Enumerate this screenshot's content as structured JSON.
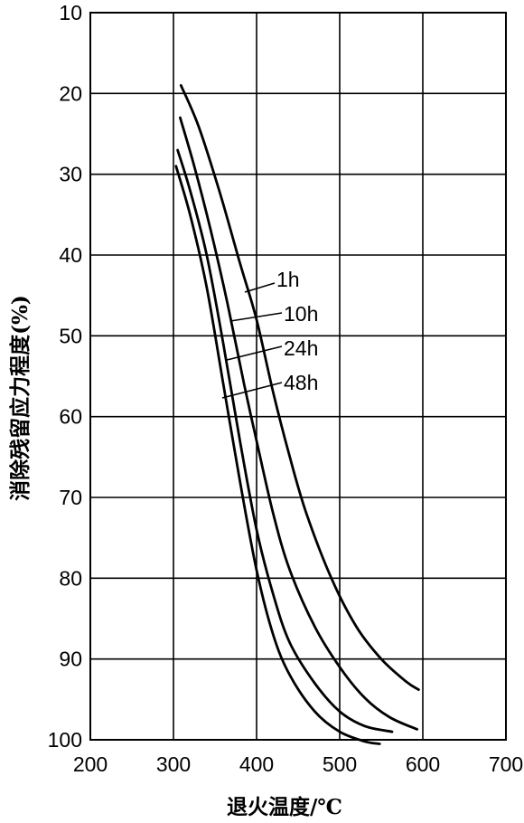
{
  "chart_data": {
    "type": "line",
    "title": "",
    "xlabel": "退火温度/℃",
    "ylabel": "消除残留应力程度(%)",
    "xlim": [
      200,
      700
    ],
    "ylim": [
      10,
      100
    ],
    "y_inverted": true,
    "grid": true,
    "x_ticks": [
      "200",
      "300",
      "400",
      "500",
      "600",
      "700"
    ],
    "y_ticks": [
      "10",
      "20",
      "30",
      "40",
      "50",
      "60",
      "70",
      "80",
      "90",
      "100"
    ],
    "series": [
      {
        "name": "1h",
        "x": [
          309,
          330,
          355,
          380,
          400,
          420,
          440,
          460,
          490,
          520,
          550,
          580,
          595
        ],
        "y": [
          19,
          24,
          32,
          41,
          48,
          57,
          65,
          72,
          80,
          86,
          90,
          92.8,
          93.8
        ]
      },
      {
        "name": "10h",
        "x": [
          308,
          325,
          345,
          365,
          385,
          400,
          420,
          440,
          470,
          500,
          530,
          560,
          593
        ],
        "y": [
          23,
          29,
          37,
          46,
          56,
          63,
          72,
          79,
          86,
          91,
          94.8,
          97.2,
          98.7
        ]
      },
      {
        "name": "24h",
        "x": [
          305,
          320,
          340,
          360,
          380,
          400,
          420,
          440,
          470,
          500,
          530,
          563
        ],
        "y": [
          27,
          32,
          40,
          51,
          63,
          74,
          82,
          88,
          93,
          96.5,
          98.3,
          99
        ]
      },
      {
        "name": "48h",
        "x": [
          303,
          320,
          340,
          360,
          380,
          400,
          420,
          440,
          470,
          500,
          530,
          548
        ],
        "y": [
          29,
          35,
          44,
          56,
          68,
          79,
          87,
          92,
          96.5,
          99,
          100.2,
          100.5
        ]
      }
    ],
    "series_label_anchors": [
      {
        "name": "1h",
        "x": 427,
        "y": 41
      },
      {
        "name": "10h",
        "x": 437,
        "y": 45
      },
      {
        "name": "24h",
        "x": 437,
        "y": 51
      },
      {
        "name": "48h",
        "x": 437,
        "y": 55
      }
    ]
  }
}
